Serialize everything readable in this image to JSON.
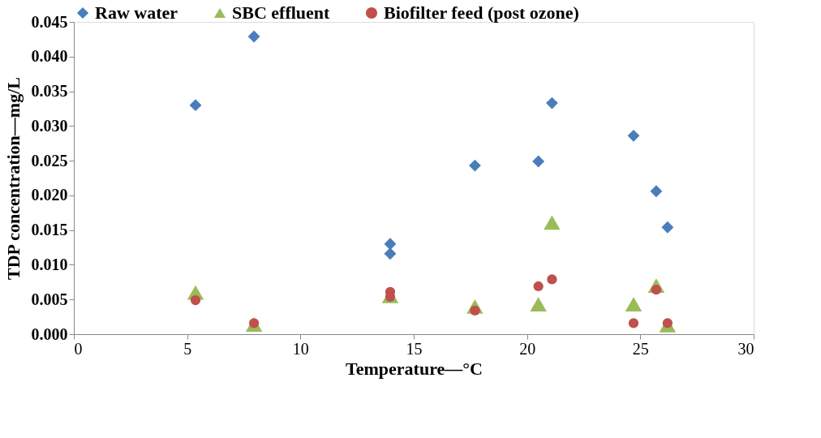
{
  "chart_data": {
    "type": "scatter",
    "xlabel": "Temperature—°C",
    "ylabel": "TDP concentration—mg/L",
    "xlim": [
      0,
      30
    ],
    "xticks": [
      0,
      5,
      10,
      15,
      20,
      25,
      30
    ],
    "ylim": [
      0,
      0.045
    ],
    "yticks": [
      {
        "value": 0,
        "label": "0.000"
      },
      {
        "value": 0.005,
        "label": "0.005"
      },
      {
        "value": 0.01,
        "label": "0.010"
      },
      {
        "value": 0.015,
        "label": "0.015"
      },
      {
        "value": 0.02,
        "label": "0.020"
      },
      {
        "value": 0.025,
        "label": "0.025"
      },
      {
        "value": 0.03,
        "label": "0.030"
      },
      {
        "value": 0.035,
        "label": "0.035"
      },
      {
        "value": 0.04,
        "label": "0.040"
      },
      {
        "value": 0.045,
        "label": "0.045"
      }
    ],
    "grid": false,
    "legend": "top",
    "series": [
      {
        "name": "Raw water",
        "color": "#4a7ebb",
        "marker": "diamond",
        "x": [
          5.37,
          7.95,
          13.96,
          13.96,
          17.7,
          20.5,
          21.1,
          24.7,
          25.7,
          26.2
        ],
        "values": [
          0.033,
          0.0429,
          0.013,
          0.0116,
          0.0243,
          0.0249,
          0.0333,
          0.0286,
          0.0206,
          0.0154
        ]
      },
      {
        "name": "SBC effluent",
        "color": "#9bbb59",
        "marker": "triangle",
        "x": [
          5.37,
          7.95,
          13.96,
          17.7,
          20.5,
          21.1,
          24.7,
          25.7,
          26.2
        ],
        "values": [
          0.006,
          0.0014,
          0.0055,
          0.004,
          0.0043,
          0.0161,
          0.0043,
          0.007,
          0.0013
        ]
      },
      {
        "name": "Biofilter feed (post ozone)",
        "color": "#c0504d",
        "marker": "circle",
        "x": [
          5.37,
          7.95,
          13.96,
          13.96,
          17.7,
          20.5,
          21.1,
          24.7,
          25.7,
          26.2
        ],
        "values": [
          0.0049,
          0.0016,
          0.0061,
          0.0054,
          0.0034,
          0.0069,
          0.0079,
          0.0016,
          0.0064,
          0.0016
        ]
      }
    ]
  }
}
